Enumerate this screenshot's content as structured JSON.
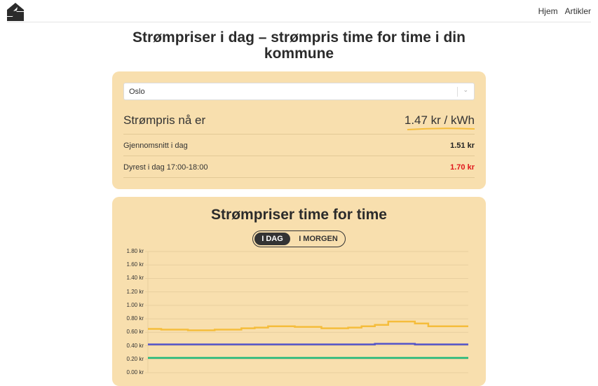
{
  "header": {
    "logo_icon": "lightning-house-logo",
    "nav": [
      {
        "label": "Hjem"
      },
      {
        "label": "Artikler"
      }
    ]
  },
  "page_title": "Strømpriser i dag – strømpris time for time i din kommune",
  "price_card": {
    "municipality_select": {
      "value": "Oslo"
    },
    "current_label": "Strømpris nå er",
    "current_value": "1.47 kr / kWh",
    "rows": [
      {
        "label": "Gjennomsnitt i dag",
        "value": "1.51 kr"
      },
      {
        "label": "Dyrest i dag 17:00-18:00",
        "value": "1.70 kr",
        "color": "#e0161c"
      }
    ]
  },
  "chart_card": {
    "title": "Strømpriser time for time",
    "toggle": {
      "options": [
        "I DAG",
        "I MORGEN"
      ],
      "selected": "I DAG"
    }
  },
  "chart_data": {
    "type": "line",
    "title": "Strømpriser time for time",
    "xlabel": "",
    "ylabel": "",
    "ylim": [
      0,
      1.8
    ],
    "y_ticks": [
      "0.00 kr",
      "0.20 kr",
      "0.40 kr",
      "0.60 kr",
      "0.80 kr",
      "1.00 kr",
      "1.20 kr",
      "1.40 kr",
      "1.60 kr",
      "1.80 kr"
    ],
    "grid": true,
    "x": [
      0,
      1,
      2,
      3,
      4,
      5,
      6,
      7,
      8,
      9,
      10,
      11,
      12,
      13,
      14,
      15,
      16,
      17,
      18,
      19,
      20,
      21,
      22,
      23
    ],
    "series": [
      {
        "name": "yellow",
        "color": "#f5bd3c",
        "values": [
          0.65,
          0.64,
          0.64,
          0.63,
          0.63,
          0.64,
          0.64,
          0.66,
          0.67,
          0.69,
          0.69,
          0.68,
          0.68,
          0.66,
          0.66,
          0.67,
          0.69,
          0.71,
          0.76,
          0.76,
          0.73,
          0.69,
          0.69,
          0.69
        ]
      },
      {
        "name": "blue",
        "color": "#5454c8",
        "values": [
          0.42,
          0.42,
          0.42,
          0.42,
          0.42,
          0.42,
          0.42,
          0.42,
          0.42,
          0.42,
          0.42,
          0.42,
          0.42,
          0.42,
          0.42,
          0.42,
          0.42,
          0.43,
          0.43,
          0.43,
          0.42,
          0.42,
          0.42,
          0.42
        ]
      },
      {
        "name": "green",
        "color": "#1db87a",
        "values": [
          0.22,
          0.22,
          0.22,
          0.22,
          0.22,
          0.22,
          0.22,
          0.22,
          0.22,
          0.22,
          0.22,
          0.22,
          0.22,
          0.22,
          0.22,
          0.22,
          0.22,
          0.22,
          0.22,
          0.22,
          0.22,
          0.22,
          0.22,
          0.22
        ]
      }
    ]
  }
}
